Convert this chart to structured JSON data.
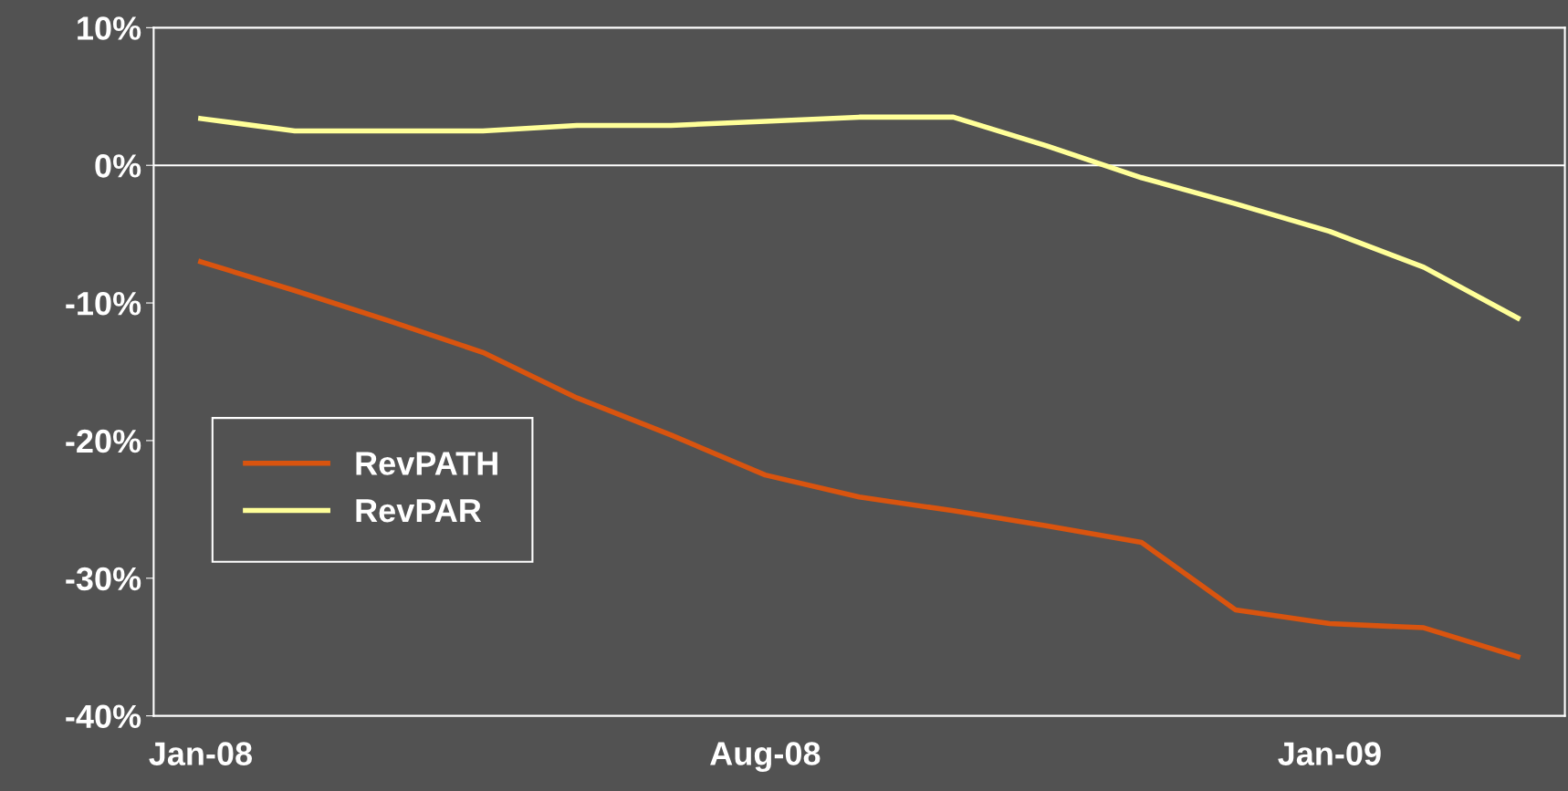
{
  "chart_data": {
    "type": "line",
    "categories": [
      "Jan-08",
      null,
      null,
      null,
      null,
      null,
      "Aug-08",
      null,
      null,
      null,
      null,
      null,
      "Jan-09",
      null,
      null
    ],
    "series": [
      {
        "name": "RevPATH",
        "color": "#d9540f",
        "values": [
          -7.0,
          -9.1,
          -11.3,
          -13.6,
          -16.9,
          -19.6,
          -22.5,
          -24.1,
          -25.1,
          -26.2,
          -27.4,
          -32.3,
          -33.3,
          -33.6,
          -35.7
        ]
      },
      {
        "name": "RevPAR",
        "color": "#ffff99",
        "values": [
          3.4,
          2.5,
          2.5,
          2.5,
          2.9,
          2.9,
          3.2,
          3.5,
          3.5,
          1.4,
          -0.9,
          -2.8,
          -4.8,
          -7.4,
          -11.1
        ]
      }
    ],
    "ylim": [
      -40,
      10
    ],
    "yticks": [
      {
        "value": -40,
        "label": "-40%"
      },
      {
        "value": -30,
        "label": "-30%"
      },
      {
        "value": -20,
        "label": "-20%"
      },
      {
        "value": -10,
        "label": "-10%"
      },
      {
        "value": 0,
        "label": "0%"
      },
      {
        "value": 10,
        "label": "10%"
      }
    ],
    "ref_lines": [
      {
        "axis": "y",
        "value": 0,
        "color": "#ffffff"
      }
    ],
    "legend": "bottom left",
    "grid": false,
    "marker": "none",
    "line_style": "solid"
  }
}
